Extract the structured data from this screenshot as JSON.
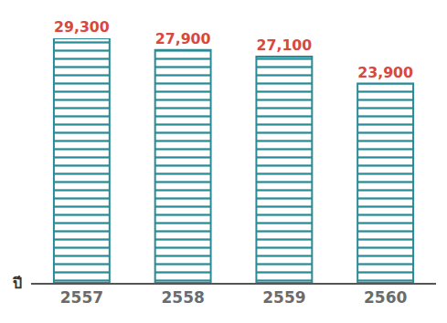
{
  "chart_data": {
    "type": "bar",
    "xlabel": "ปี",
    "categories": [
      "2557",
      "2558",
      "2559",
      "2560"
    ],
    "values": [
      29300,
      27900,
      27100,
      23900
    ],
    "value_labels": [
      "29,300",
      "27,900",
      "27,100",
      "23,900"
    ],
    "data_labels": true,
    "color": "#2a8a96",
    "ylim": [
      0,
      29300
    ],
    "tick_labels": "x",
    "grid": false
  }
}
